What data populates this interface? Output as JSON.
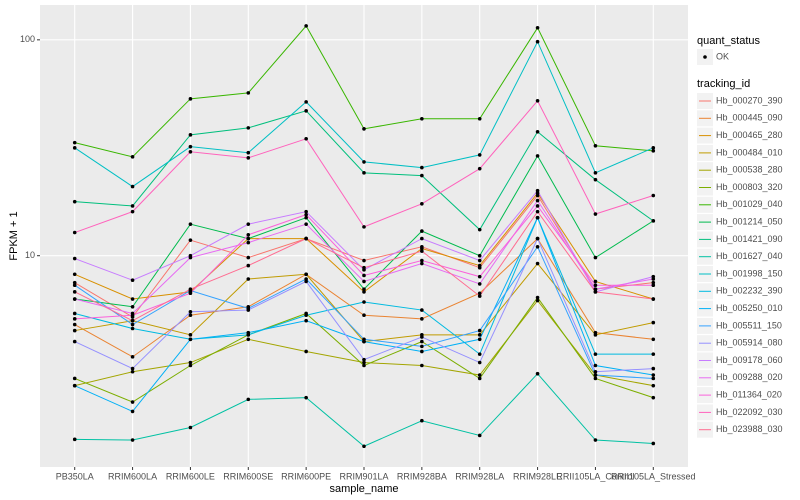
{
  "chart_data": {
    "type": "line",
    "x_label": "sample_name",
    "y_label": "FPKM + 1",
    "log_y": true,
    "grid": true,
    "point_color": "#000000",
    "categories": [
      "PB350LA",
      "RRIM600LA",
      "RRIM600LE",
      "RRIM600SE",
      "RRIM600PE",
      "RRIM901LA",
      "RRIM928BA",
      "RRIM928LA",
      "RRIM928LE",
      "RRII105LA_Control",
      "RRII105LA_Stressed"
    ],
    "ylim": [
      1.05,
      145
    ],
    "yticks": [
      10,
      100
    ],
    "legend_position": "right",
    "shape_legend_title": "quant_status",
    "shape_legend_labels": [
      "OK"
    ],
    "color_legend_title": "tracking_id",
    "series": [
      {
        "name": "Hb_000270_390",
        "color": "#F8766D",
        "values": [
          7.5,
          5.2,
          11.8,
          9.8,
          12,
          9.5,
          11,
          8.8,
          19,
          7,
          7.5
        ]
      },
      {
        "name": "Hb_000445_090",
        "color": "#EA8331",
        "values": [
          4.8,
          3.4,
          5.3,
          5.8,
          8.2,
          5.3,
          5.1,
          6.7,
          12,
          4.4,
          4.1
        ]
      },
      {
        "name": "Hb_000465_280",
        "color": "#D89000",
        "values": [
          8.2,
          6.3,
          6.8,
          12,
          12,
          6.8,
          10.8,
          9,
          19.5,
          7.6,
          6.3
        ]
      },
      {
        "name": "Hb_000484_010",
        "color": "#C09B00",
        "values": [
          4.5,
          5.0,
          4.3,
          7.8,
          8.2,
          4.0,
          4.3,
          4.3,
          9.2,
          4.3,
          4.9
        ]
      },
      {
        "name": "Hb_000538_280",
        "color": "#A3A500",
        "values": [
          2.5,
          2.9,
          3.2,
          4.1,
          3.6,
          3.2,
          3.1,
          2.8,
          6.2,
          2.8,
          2.5
        ]
      },
      {
        "name": "Hb_000803_320",
        "color": "#7CAE00",
        "values": [
          2.7,
          2.1,
          3.1,
          4.3,
          5.4,
          3.1,
          4.0,
          2.7,
          6.4,
          2.7,
          2.2
        ]
      },
      {
        "name": "Hb_001029_040",
        "color": "#39B600",
        "values": [
          33.4,
          28.7,
          53.3,
          56.8,
          116,
          38.7,
          43.1,
          43.1,
          113.7,
          32.3,
          30.6
        ]
      },
      {
        "name": "Hb_001214_050",
        "color": "#00BB4E",
        "values": [
          6.3,
          5.8,
          14,
          12,
          15,
          7,
          13,
          10,
          29,
          9.8,
          14.5
        ]
      },
      {
        "name": "Hb_001421_090",
        "color": "#00BF7D",
        "values": [
          17.8,
          17,
          36.3,
          39.1,
          46.9,
          24.2,
          23.5,
          13.2,
          37.5,
          22.5,
          14.5
        ]
      },
      {
        "name": "Hb_001627_040",
        "color": "#00C1A3",
        "values": [
          1.41,
          1.4,
          1.6,
          2.16,
          2.2,
          1.31,
          1.72,
          1.47,
          2.84,
          1.4,
          1.35
        ]
      },
      {
        "name": "Hb_001998_150",
        "color": "#00BFC4",
        "values": [
          31.6,
          20.9,
          32,
          30,
          51.6,
          27.2,
          25.6,
          29.3,
          98,
          24.2,
          31.6
        ]
      },
      {
        "name": "Hb_002232_390",
        "color": "#00BAE0",
        "values": [
          5.4,
          4.6,
          4.1,
          4.3,
          5.3,
          6.1,
          5.6,
          3.5,
          15,
          3.5,
          3.5
        ]
      },
      {
        "name": "Hb_005250_010",
        "color": "#00B0F6",
        "values": [
          2.5,
          1.9,
          4.1,
          4.4,
          5.0,
          4.0,
          3.6,
          4.1,
          15,
          3.1,
          2.8
        ]
      },
      {
        "name": "Hb_005511_150",
        "color": "#35A2FF",
        "values": [
          7.3,
          4.8,
          6.9,
          5.7,
          7.8,
          4.1,
          3.8,
          4.5,
          11,
          2.8,
          2.7
        ]
      },
      {
        "name": "Hb_005914_080",
        "color": "#9590FF",
        "values": [
          4.0,
          3.0,
          5.5,
          5.6,
          7.6,
          3.3,
          4.2,
          3.2,
          12,
          2.9,
          3.0
        ]
      },
      {
        "name": "Hb_009178_060",
        "color": "#C77CFF",
        "values": [
          9.7,
          7.7,
          10,
          14,
          16,
          8.6,
          12,
          9.5,
          20,
          6.8,
          8
        ]
      },
      {
        "name": "Hb_009288_020",
        "color": "#E76BF3",
        "values": [
          6.3,
          5.4,
          9.8,
          11.5,
          14,
          7.6,
          9.2,
          7.4,
          18,
          7,
          7.8
        ]
      },
      {
        "name": "Hb_011364_020",
        "color": "#FA62DB",
        "values": [
          5.1,
          5.3,
          6.7,
          12.5,
          15.5,
          8.1,
          9.5,
          8,
          17,
          7.3,
          7.3
        ]
      },
      {
        "name": "Hb_022092_030",
        "color": "#FF62BC",
        "values": [
          12.8,
          16,
          30.3,
          28.4,
          34.8,
          13.6,
          17.4,
          25.3,
          52.2,
          15.6,
          19
        ]
      },
      {
        "name": "Hb_023988_030",
        "color": "#FF6C91",
        "values": [
          6.8,
          5,
          7,
          9,
          12,
          8.8,
          10.5,
          6.5,
          16,
          6.8,
          6.3
        ]
      }
    ]
  }
}
